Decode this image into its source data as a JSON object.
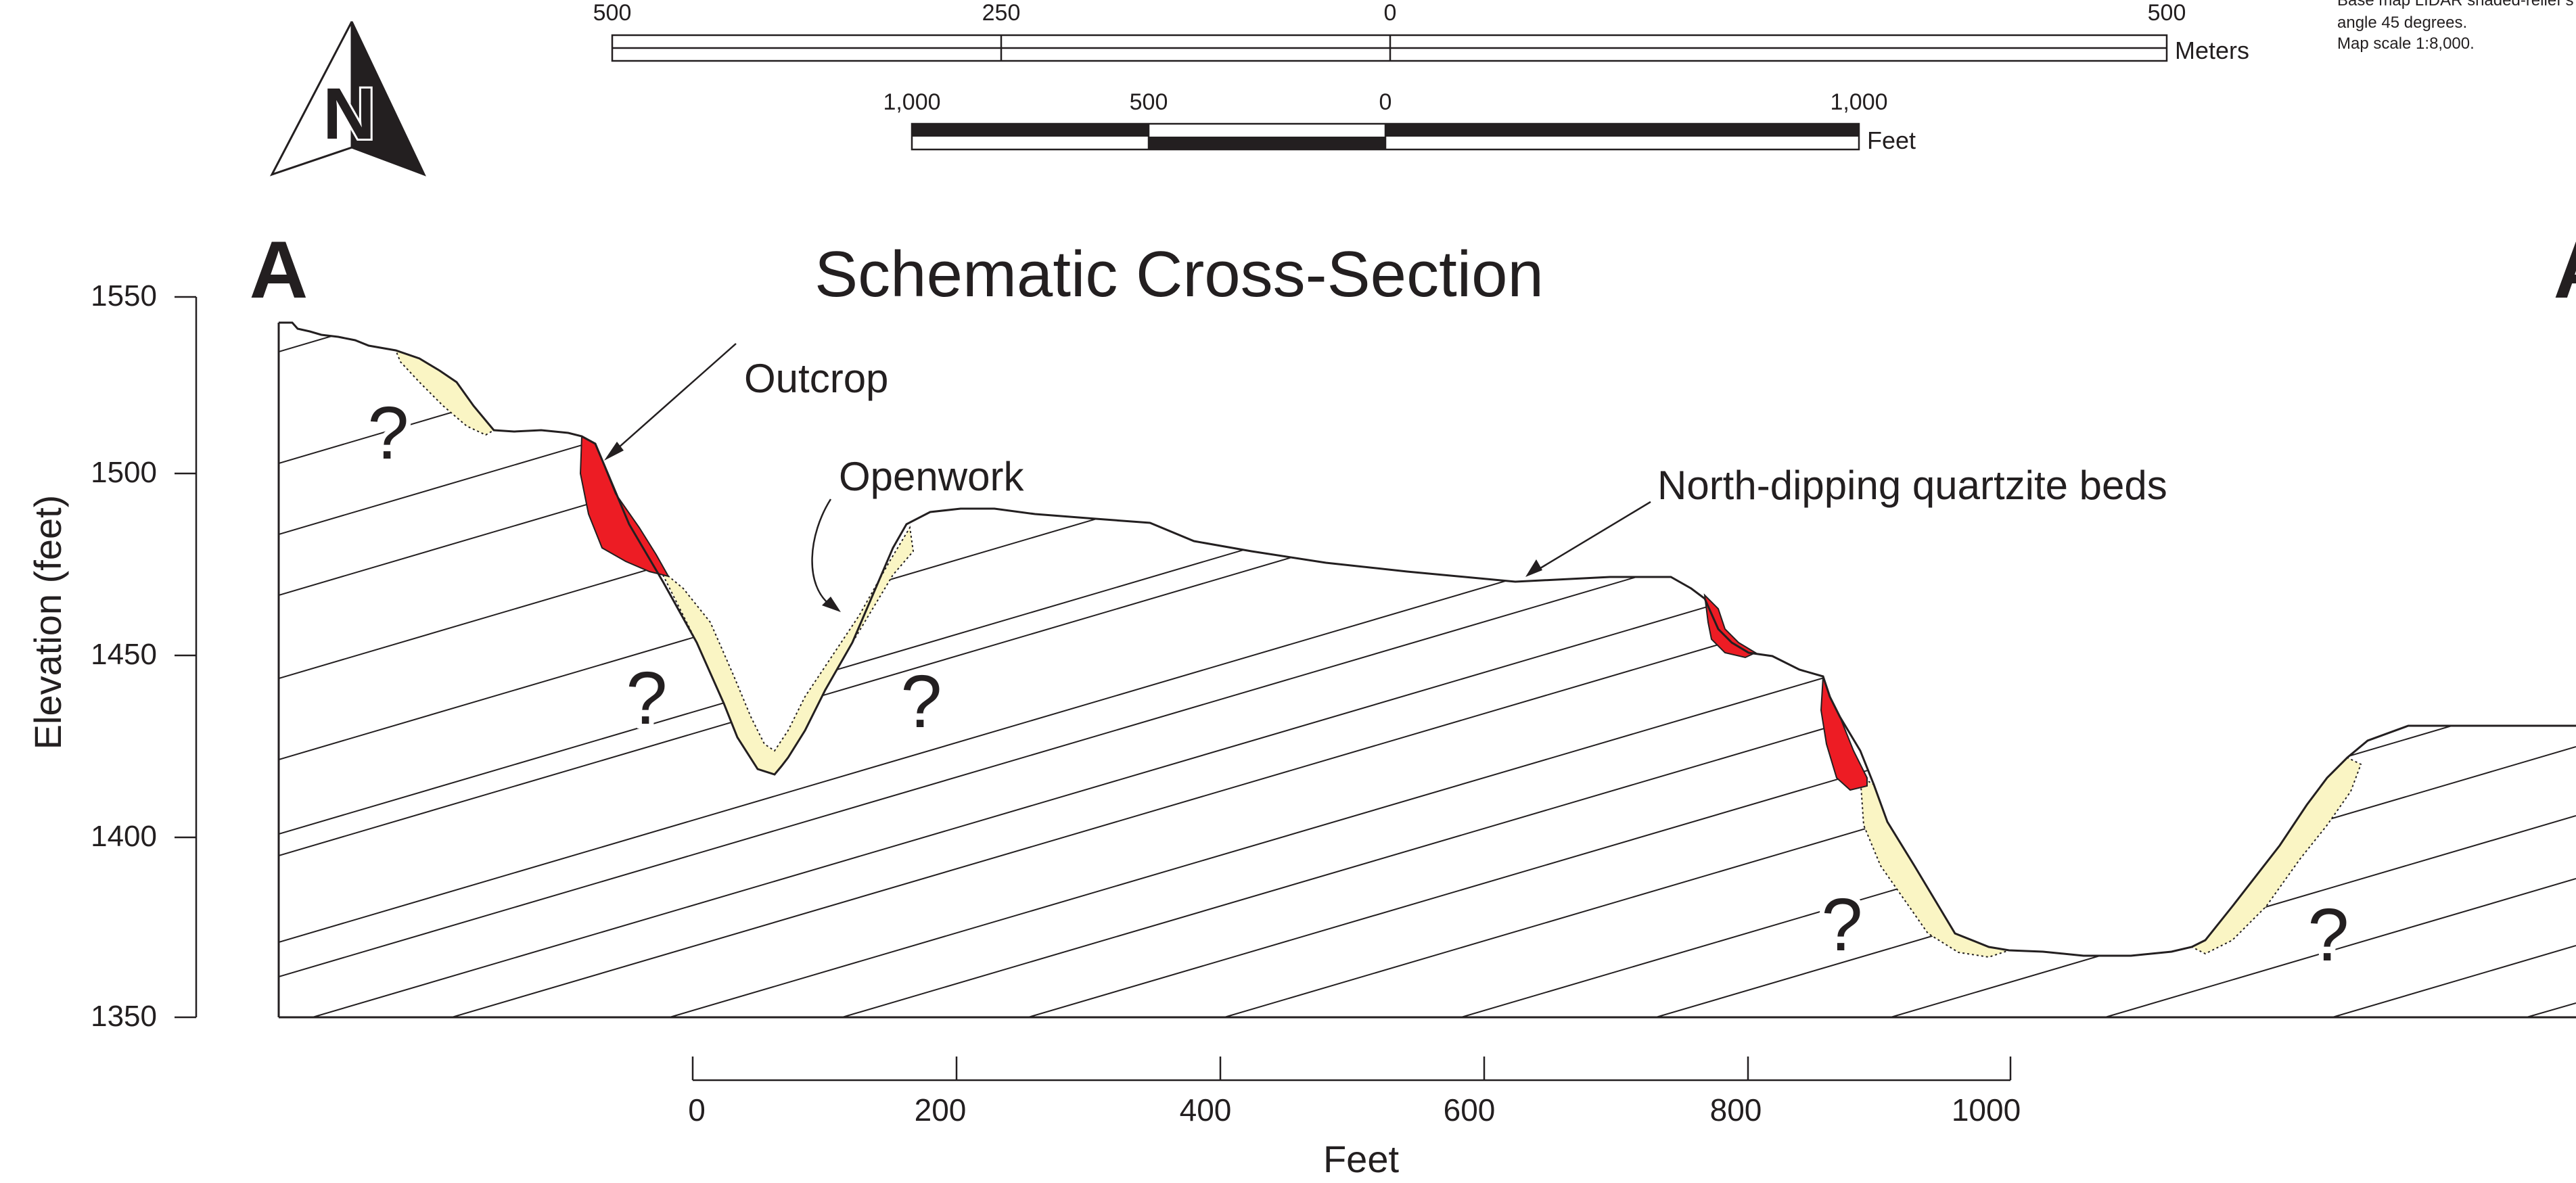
{
  "figure": {
    "title": "Schematic Cross-Section",
    "section_start_label": "A",
    "section_end_label": "A",
    "y_axis_label": "Elevation (feet)",
    "y_ticks": [
      "1550",
      "1500",
      "1450",
      "1400",
      "1350"
    ],
    "x_axis_label": "Feet",
    "x_ticks": [
      "0",
      "200",
      "400",
      "600",
      "800",
      "1000"
    ],
    "callouts": {
      "outcrop": "Outcrop",
      "openwork": "Openwork",
      "beds": "North-dipping quartzite beds"
    },
    "question_mark": "?"
  },
  "north_arrow": {
    "label": "N"
  },
  "scale_bars": {
    "meters": {
      "unit": "Meters",
      "ticks": [
        "500",
        "250",
        "0",
        "500"
      ]
    },
    "feet": {
      "unit": "Feet",
      "ticks": [
        "1,000",
        "500",
        "0",
        "1,000"
      ]
    }
  },
  "map_notes": [
    "Base map LIDAR shaded-relief s",
    "angle 45 degrees.",
    "Map scale 1:8,000."
  ],
  "colors": {
    "outcrop": "#ed1c24",
    "openwork": "#faf5c4",
    "line": "#231f20"
  }
}
